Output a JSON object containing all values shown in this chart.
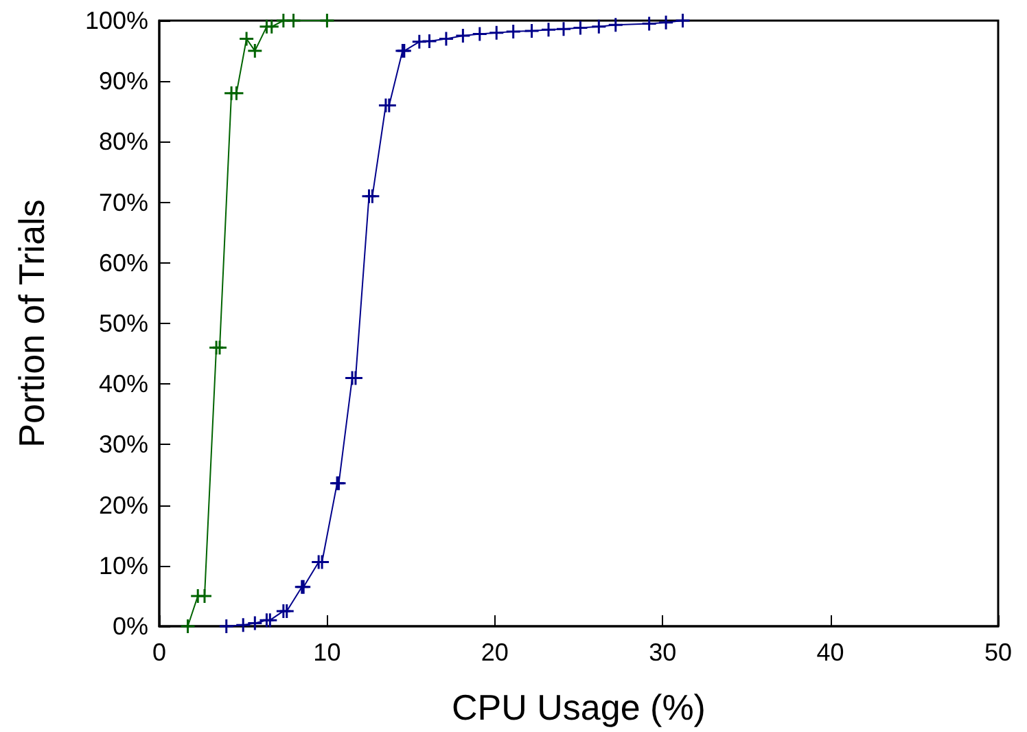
{
  "chart_data": {
    "type": "line",
    "xlabel": "CPU Usage (%)",
    "ylabel": "Portion of Trials",
    "xlim": [
      0,
      50
    ],
    "xticks": [
      0,
      10,
      20,
      30,
      40,
      50
    ],
    "ylim": [
      0,
      100
    ],
    "yticks": [
      {
        "value": 0,
        "label": "0%"
      },
      {
        "value": 10,
        "label": "10%"
      },
      {
        "value": 20,
        "label": "20%"
      },
      {
        "value": 30,
        "label": "30%"
      },
      {
        "value": 40,
        "label": "40%"
      },
      {
        "value": 50,
        "label": "50%"
      },
      {
        "value": 60,
        "label": "60%"
      },
      {
        "value": 70,
        "label": "70%"
      },
      {
        "value": 80,
        "label": "80%"
      },
      {
        "value": 90,
        "label": "90%"
      },
      {
        "value": 100,
        "label": "100%"
      }
    ],
    "grid": false,
    "marker": "cross",
    "line_style": "solid",
    "series": [
      {
        "color": "#00008b",
        "x": [
          4,
          5,
          5.7,
          6.4,
          6.6,
          7.4,
          7.6,
          8.5,
          8.6,
          9.5,
          9.7,
          10.6,
          10.7,
          11.5,
          11.7,
          12.5,
          12.7,
          13.5,
          13.7,
          14.5,
          14.6,
          15.5,
          16.1,
          17.1,
          18.1,
          19.1,
          20.1,
          21.1,
          22.2,
          23.2,
          24.1,
          25.1,
          26.2,
          27.2,
          29.2,
          30.2,
          31.2
        ],
        "values": [
          0,
          0.2,
          0.5,
          1,
          1,
          2.5,
          2.5,
          6.5,
          6.5,
          10.6,
          10.6,
          23.6,
          23.6,
          41,
          41,
          71,
          71,
          86,
          86,
          95,
          95,
          96.5,
          96.6,
          97,
          97.5,
          97.8,
          98,
          98.2,
          98.3,
          98.5,
          98.6,
          98.8,
          99,
          99.3,
          99.5,
          99.7,
          100
        ]
      },
      {
        "color": "#006400",
        "x": [
          1.7,
          2.3,
          2.7,
          3.4,
          3.6,
          4.3,
          4.6,
          5.2,
          5.7,
          6.4,
          6.7,
          7.4,
          8,
          10
        ],
        "values": [
          0,
          5,
          5,
          46,
          46,
          88,
          88,
          97,
          95,
          99,
          99,
          100,
          100,
          100
        ]
      }
    ]
  }
}
